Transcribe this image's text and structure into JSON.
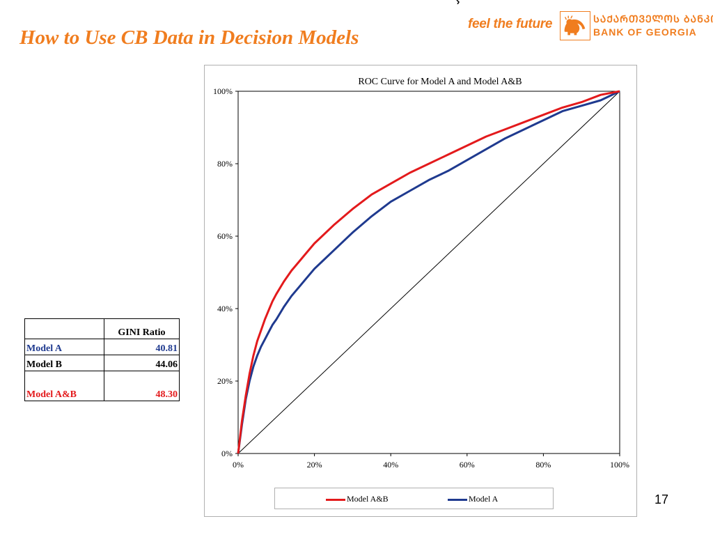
{
  "slide": {
    "title": "How to Use CB Data in Decision Models",
    "page_number": "17"
  },
  "logo": {
    "tagline": "feel the future",
    "bank_name_georgian": "ᲡᲐᲥᲐᲠᲗᲕᲔᲚᲝᲡ ᲑᲐᲜᲙᲘ",
    "bank_name_english": "BANK OF GEORGIA",
    "color": "#f07d1f"
  },
  "gini_table": {
    "header": "GINI Ratio",
    "rows": [
      {
        "name": "Model  A",
        "value": "40.81",
        "color": "#1f3a8f"
      },
      {
        "name": "Model  B",
        "value": "44.06",
        "color": "#000000"
      },
      {
        "name": "Model  A&B",
        "value": "48.30",
        "color": "#e31a1c"
      }
    ]
  },
  "chart_data": {
    "type": "line",
    "title": "ROC Curve for Model A and Model A&B",
    "xlabel": "",
    "ylabel": "",
    "xlim": [
      0,
      100
    ],
    "ylim": [
      0,
      100
    ],
    "x_ticks": [
      "0%",
      "20%",
      "40%",
      "60%",
      "80%",
      "100%"
    ],
    "y_ticks": [
      "0%",
      "20%",
      "40%",
      "60%",
      "80%",
      "100%"
    ],
    "grid": false,
    "legend_position": "bottom",
    "series": [
      {
        "name": "Model A&B",
        "color": "#e31a1c",
        "x": [
          0,
          1,
          2,
          3,
          4,
          5,
          6,
          7,
          8,
          9,
          10,
          12,
          14,
          16,
          18,
          20,
          22,
          25,
          30,
          35,
          40,
          45,
          50,
          55,
          60,
          65,
          70,
          75,
          80,
          85,
          90,
          95,
          100
        ],
        "y": [
          0,
          9,
          16,
          22,
          27,
          31,
          34,
          37,
          39.5,
          42,
          44,
          47.5,
          50.5,
          53,
          55.5,
          58,
          60,
          63,
          67.5,
          71.5,
          74.5,
          77.5,
          80,
          82.5,
          85,
          87.5,
          89.5,
          91.5,
          93.5,
          95.5,
          97,
          99,
          100
        ]
      },
      {
        "name": "Model A",
        "color": "#1f3a8f",
        "x": [
          0,
          1,
          2,
          3,
          4,
          5,
          6,
          7,
          8,
          9,
          10,
          12,
          14,
          16,
          18,
          20,
          22,
          25,
          30,
          35,
          40,
          45,
          50,
          55,
          60,
          65,
          70,
          75,
          80,
          85,
          90,
          95,
          100
        ],
        "y": [
          0,
          8,
          15,
          20,
          24,
          27,
          29.5,
          31.5,
          33.5,
          35.5,
          37,
          40.5,
          43.5,
          46,
          48.5,
          51,
          53,
          56,
          61,
          65.5,
          69.5,
          72.5,
          75.5,
          78,
          81,
          84,
          87,
          89.5,
          92,
          94.5,
          96,
          97.5,
          100
        ]
      }
    ],
    "diagonal": {
      "x": [
        0,
        100
      ],
      "y": [
        0,
        100
      ],
      "color": "#000000"
    }
  }
}
